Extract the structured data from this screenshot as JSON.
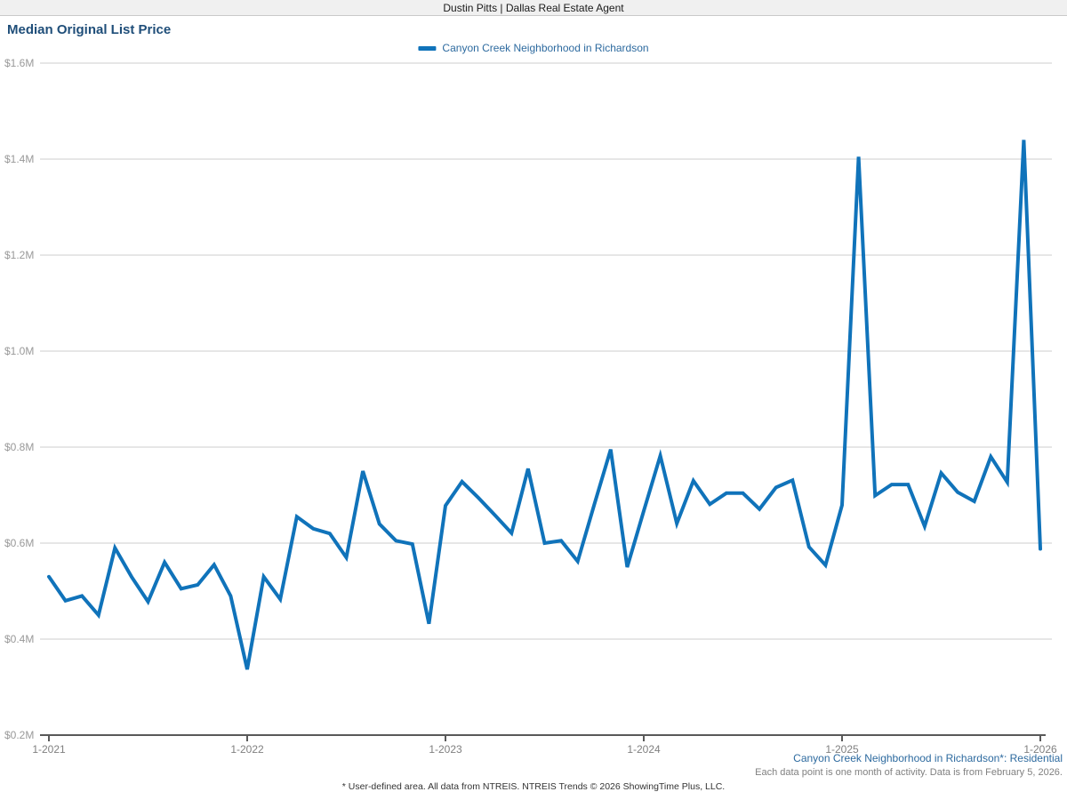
{
  "header_bar": {
    "title": "Dustin Pitts | Dallas Real Estate Agent"
  },
  "page": {
    "title": "Median Original List Price"
  },
  "legend": {
    "label": "Canyon Creek Neighborhood in Richardson"
  },
  "footer": {
    "series_note": "Canyon Creek Neighborhood in Richardson*: Residential",
    "data_note": "Each data point is one month of activity. Data is from February 5, 2026.",
    "disclaimer": "* User-defined area. All data from NTREIS. NTREIS Trends © 2026 ShowingTime Plus, LLC."
  },
  "colors": {
    "line": "#1073ba",
    "title_text": "#1f4e79",
    "legend_text": "#2d6a9f",
    "grid": "#cccccc",
    "axis": "#595959",
    "y_tick_label": "#999999",
    "x_tick_label": "#808080",
    "note_text": "#808080"
  },
  "chart_data": {
    "type": "line",
    "title": "Median Original List Price",
    "x_unit": "month",
    "x_start": "1-2021",
    "x_end": "1-2026",
    "x_tick_labels": [
      "1-2021",
      "1-2022",
      "1-2023",
      "1-2024",
      "1-2025",
      "1-2026"
    ],
    "x_tick_indices": [
      0,
      12,
      24,
      36,
      48,
      60
    ],
    "y_tick_labels": [
      "$0.2M",
      "$0.4M",
      "$0.6M",
      "$0.8M",
      "$1.0M",
      "$1.2M",
      "$1.4M",
      "$1.6M"
    ],
    "y_tick_values": [
      200000,
      400000,
      600000,
      800000,
      1000000,
      1200000,
      1400000,
      1600000
    ],
    "ylim": [
      200000,
      1600000
    ],
    "grid": true,
    "legend_position": "top-center",
    "series": [
      {
        "name": "Canyon Creek Neighborhood in Richardson",
        "unit": "USD",
        "values": [
          530000,
          480000,
          490000,
          450000,
          590000,
          530000,
          478000,
          560000,
          505000,
          513000,
          555000,
          490000,
          337000,
          530000,
          483000,
          655000,
          630000,
          620000,
          570000,
          750000,
          640000,
          605000,
          598000,
          432000,
          678000,
          728000,
          694000,
          658000,
          621000,
          755000,
          600000,
          605000,
          562000,
          680000,
          795000,
          550000,
          667000,
          782000,
          641000,
          730000,
          681000,
          704000,
          704000,
          671000,
          716000,
          731000,
          592000,
          554000,
          679000,
          1405000,
          699000,
          722000,
          722000,
          635000,
          746000,
          706000,
          687000,
          780000,
          727000,
          1440000,
          588000
        ]
      }
    ]
  }
}
